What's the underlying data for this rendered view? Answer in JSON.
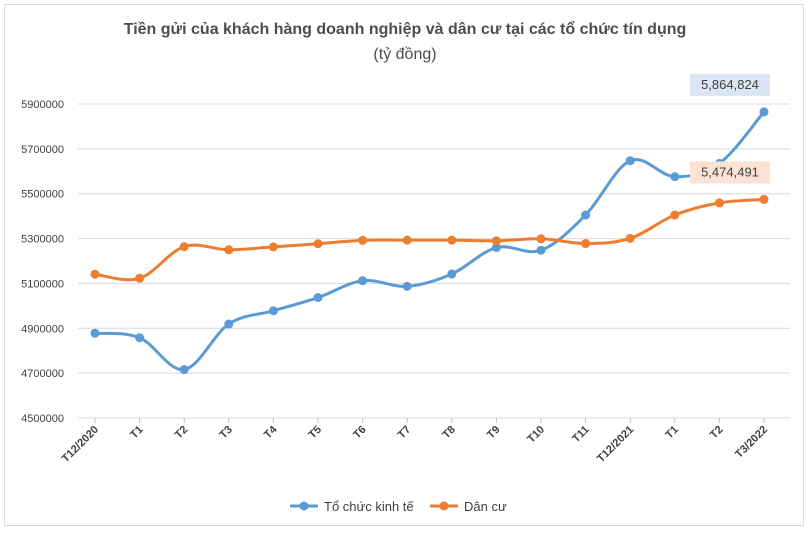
{
  "chart_data": {
    "type": "line",
    "title": "Tiền gửi của khách hàng doanh nghiệp và dân cư tại các tổ chức tín dụng",
    "subtitle": "(tỷ đồng)",
    "categories": [
      "T12/2020",
      "T1",
      "T2",
      "T3",
      "T4",
      "T5",
      "T6",
      "T7",
      "T8",
      "T9",
      "T10",
      "T11",
      "T12/2021",
      "T1",
      "T2",
      "T3/2022"
    ],
    "y_ticks": [
      "4500000",
      "4700000",
      "4900000",
      "5100000",
      "5300000",
      "5500000",
      "5700000",
      "5900000"
    ],
    "ylim": [
      4500000,
      5900000
    ],
    "grid": true,
    "legend_position": "bottom",
    "series": [
      {
        "name": "Tổ chức kinh tế",
        "color": "#5b9bd5",
        "values": [
          4878000,
          4858000,
          4716000,
          4919000,
          4978000,
          5037000,
          5112000,
          5087000,
          5142000,
          5260000,
          5248000,
          5405000,
          5647000,
          5576000,
          5635000,
          5864824
        ]
      },
      {
        "name": "Dân cư",
        "color": "#ed7d31",
        "values": [
          5141000,
          5123000,
          5264000,
          5250000,
          5263000,
          5277000,
          5292000,
          5293000,
          5293000,
          5290000,
          5299000,
          5278000,
          5301000,
          5405000,
          5459000,
          5474491
        ]
      }
    ],
    "annotations": [
      {
        "series": 0,
        "label": "5,864,824",
        "fill": "#dae6f3"
      },
      {
        "series": 1,
        "label": "5,474,491",
        "fill": "#fbe3d3"
      }
    ]
  }
}
